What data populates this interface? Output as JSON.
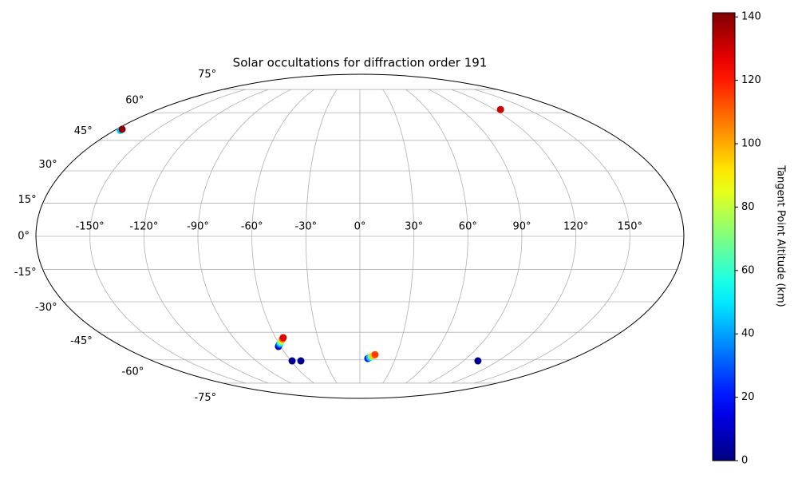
{
  "chart_data": {
    "type": "scatter",
    "projection": "mollweide",
    "title": "Solar occultations for diffraction order 191",
    "colorbar_label": "Tangent Point Altitude (km)",
    "colormap": "jet",
    "x": [
      -175.9,
      -175.9,
      125.4,
      -61.7,
      -60.7,
      -59.7,
      -58.6,
      -57.6,
      -56.6,
      -55.6,
      -54.6,
      -58.9,
      -51.3,
      6.7,
      8.1,
      9.5,
      10.9,
      12.3,
      102.5
    ],
    "y": [
      50.2,
      50.8,
      61.9,
      -52.5,
      -51.8,
      -51.2,
      -50.5,
      -49.8,
      -49.1,
      -48.5,
      -47.8,
      -60.6,
      -60.6,
      -59.2,
      -58.7,
      -58.1,
      -57.6,
      -57.0,
      -60.6
    ],
    "color_values": [
      45,
      140,
      130,
      0,
      18,
      36,
      54,
      72,
      90,
      110,
      128,
      2,
      2,
      20,
      45,
      70,
      95,
      115,
      2
    ],
    "xlim": [
      -180,
      180
    ],
    "ylim": [
      -90,
      90
    ],
    "xticks": [
      {
        "value": -150,
        "label": "-150°"
      },
      {
        "value": -120,
        "label": "-120°"
      },
      {
        "value": -90,
        "label": "-90°"
      },
      {
        "value": -60,
        "label": "-60°"
      },
      {
        "value": -30,
        "label": "-30°"
      },
      {
        "value": 0,
        "label": "0°"
      },
      {
        "value": 30,
        "label": "30°"
      },
      {
        "value": 60,
        "label": "60°"
      },
      {
        "value": 90,
        "label": "90°"
      },
      {
        "value": 120,
        "label": "120°"
      },
      {
        "value": 150,
        "label": "150°"
      }
    ],
    "yticks": [
      {
        "value": -75,
        "label": "-75°"
      },
      {
        "value": -60,
        "label": "-60°"
      },
      {
        "value": -45,
        "label": "-45°"
      },
      {
        "value": -30,
        "label": "-30°"
      },
      {
        "value": -15,
        "label": "-15°"
      },
      {
        "value": 0,
        "label": "0°"
      },
      {
        "value": 15,
        "label": "15°"
      },
      {
        "value": 30,
        "label": "30°"
      },
      {
        "value": 45,
        "label": "45°"
      },
      {
        "value": 60,
        "label": "60°"
      },
      {
        "value": 75,
        "label": "75°"
      }
    ],
    "clim": [
      0,
      141.3
    ],
    "cticks": [
      0,
      20,
      40,
      60,
      80,
      100,
      120,
      140
    ],
    "grid": true
  }
}
